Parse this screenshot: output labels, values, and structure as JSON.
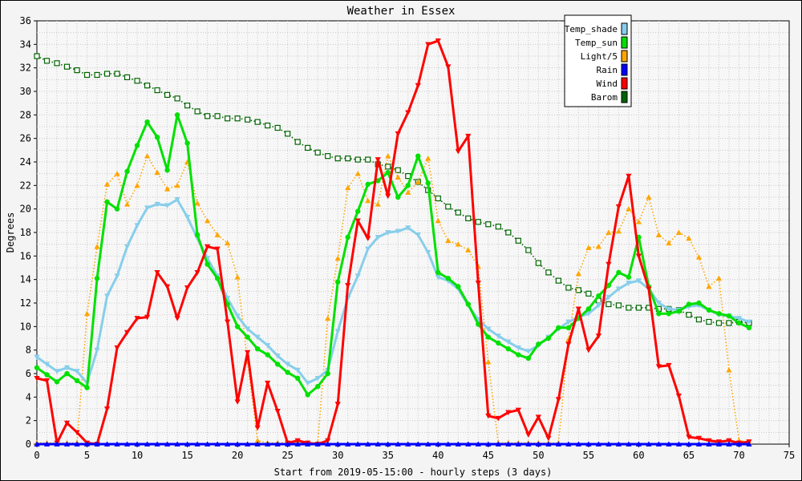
{
  "chart_data": {
    "type": "line",
    "title": "Weather in Essex",
    "xlabel": "Start from 2019-05-15:00 - hourly steps (3 days)",
    "ylabel": "Degrees",
    "xlim": [
      0,
      75
    ],
    "ylim": [
      0,
      36
    ],
    "xticks": [
      0,
      5,
      10,
      15,
      20,
      25,
      30,
      35,
      40,
      45,
      50,
      55,
      60,
      65,
      70,
      75
    ],
    "yticks": [
      0,
      2,
      4,
      6,
      8,
      10,
      12,
      14,
      16,
      18,
      20,
      22,
      24,
      26,
      28,
      30,
      32,
      34,
      36
    ],
    "grid": true,
    "legend_position": "top-right",
    "series": [
      {
        "name": "Temp_shade",
        "color": "#87ceeb",
        "marker": "triangle-down",
        "line": "solid",
        "values": [
          7.4,
          6.8,
          6.2,
          6.5,
          6.2,
          5.2,
          8.0,
          12.6,
          14.3,
          16.8,
          18.6,
          20.1,
          20.4,
          20.3,
          20.8,
          19.3,
          17.5,
          15.8,
          14.3,
          12.4,
          10.9,
          9.8,
          9.1,
          8.4,
          7.5,
          6.8,
          6.3,
          5.2,
          5.6,
          6.3,
          9.6,
          12.4,
          14.3,
          16.6,
          17.6,
          18.0,
          18.1,
          18.4,
          17.8,
          16.3,
          14.2,
          13.9,
          13.2,
          11.8,
          10.6,
          9.8,
          9.2,
          8.7,
          8.2,
          7.9,
          8.4,
          9.1,
          9.8,
          10.4,
          10.8,
          11.1,
          11.8,
          12.5,
          13.2,
          13.7,
          13.9,
          13.2,
          12.0,
          11.5,
          11.4,
          11.7,
          11.8,
          11.4,
          11.0,
          10.9,
          10.7,
          10.4
        ]
      },
      {
        "name": "Temp_sun",
        "color": "#00e000",
        "marker": "circle",
        "line": "solid",
        "values": [
          6.5,
          5.9,
          5.3,
          6.0,
          5.4,
          4.8,
          14.1,
          20.6,
          20.0,
          23.2,
          25.4,
          27.4,
          26.1,
          23.3,
          28.0,
          25.6,
          17.8,
          15.3,
          14.1,
          11.9,
          10.0,
          9.1,
          8.1,
          7.6,
          6.8,
          6.1,
          5.6,
          4.2,
          4.9,
          6.0,
          13.8,
          17.6,
          19.8,
          22.1,
          22.4,
          23.1,
          21.0,
          22.0,
          24.5,
          22.2,
          14.6,
          14.1,
          13.4,
          11.9,
          10.2,
          9.1,
          8.6,
          8.1,
          7.6,
          7.3,
          8.5,
          9.0,
          9.9,
          9.9,
          10.7,
          11.5,
          12.6,
          13.5,
          14.6,
          14.2,
          17.6,
          13.4,
          11.1,
          11.1,
          11.3,
          11.9,
          12.0,
          11.4,
          11.1,
          10.9,
          10.3,
          9.9
        ]
      },
      {
        "name": "Light/5",
        "color": "#ffa500",
        "marker": "triangle-up",
        "line": "dotted",
        "values": [
          0.1,
          0.1,
          0.1,
          0.1,
          0.1,
          11.1,
          16.8,
          22.1,
          23.0,
          20.4,
          22.0,
          24.5,
          23.1,
          21.7,
          22.0,
          24.0,
          20.5,
          19.0,
          17.8,
          17.1,
          14.2,
          7.0,
          0.3,
          0.1,
          0.1,
          0.1,
          0.1,
          0.1,
          0.1,
          10.7,
          15.8,
          21.8,
          23.0,
          20.7,
          20.4,
          24.5,
          22.7,
          21.4,
          22.3,
          24.3,
          19.0,
          17.3,
          17.0,
          16.5,
          15.1,
          7.0,
          0.1,
          0.1,
          0.1,
          0.1,
          0.1,
          0.1,
          0.1,
          8.9,
          14.5,
          16.7,
          16.8,
          18.0,
          18.1,
          20.0,
          18.9,
          21.0,
          17.8,
          17.1,
          18.0,
          17.5,
          15.9,
          13.4,
          14.1,
          6.3,
          0.3,
          0.2
        ]
      },
      {
        "name": "Rain",
        "color": "#0000ff",
        "marker": "triangle-up",
        "line": "solid",
        "values": [
          0,
          0,
          0,
          0,
          0,
          0,
          0,
          0,
          0,
          0,
          0,
          0,
          0,
          0,
          0,
          0,
          0,
          0,
          0,
          0,
          0,
          0,
          0,
          0,
          0,
          0,
          0,
          0,
          0,
          0,
          0,
          0,
          0,
          0,
          0,
          0,
          0,
          0,
          0,
          0,
          0,
          0,
          0,
          0,
          0,
          0,
          0,
          0,
          0,
          0,
          0,
          0,
          0,
          0,
          0,
          0,
          0,
          0,
          0,
          0,
          0,
          0,
          0,
          0,
          0,
          0,
          0,
          0,
          0,
          0,
          0,
          0
        ]
      },
      {
        "name": "Wind",
        "color": "#ff0000",
        "marker": "triangle-down",
        "line": "solid",
        "values": [
          5.6,
          5.4,
          0.1,
          1.8,
          1.0,
          0.1,
          0.0,
          3.0,
          8.2,
          9.5,
          10.7,
          10.8,
          14.6,
          13.4,
          10.7,
          13.3,
          14.6,
          16.8,
          16.6,
          10.4,
          3.6,
          7.8,
          1.4,
          5.2,
          2.8,
          0.1,
          0.3,
          0.1,
          0.0,
          0.3,
          3.4,
          13.5,
          19.0,
          17.5,
          24.2,
          21.1,
          26.4,
          28.2,
          30.5,
          34.0,
          34.3,
          32.1,
          24.9,
          26.2,
          13.7,
          2.4,
          2.2,
          2.7,
          2.9,
          0.8,
          2.3,
          0.5,
          3.8,
          8.5,
          11.5,
          8.0,
          9.2,
          15.3,
          20.2,
          22.8,
          16.0,
          13.2,
          6.6,
          6.7,
          4.1,
          0.6,
          0.5,
          0.3,
          0.2,
          0.3,
          0.1,
          0.2
        ]
      },
      {
        "name": "Barom",
        "color": "#006400",
        "marker": "square",
        "line": "dotted",
        "values": [
          33.0,
          32.6,
          32.4,
          32.1,
          31.8,
          31.4,
          31.4,
          31.5,
          31.5,
          31.2,
          30.9,
          30.5,
          30.1,
          29.7,
          29.4,
          28.8,
          28.3,
          27.9,
          27.9,
          27.7,
          27.7,
          27.6,
          27.4,
          27.1,
          26.9,
          26.4,
          25.7,
          25.2,
          24.8,
          24.5,
          24.3,
          24.3,
          24.2,
          24.2,
          23.8,
          23.6,
          23.3,
          22.8,
          22.3,
          21.6,
          20.9,
          20.2,
          19.7,
          19.2,
          18.9,
          18.7,
          18.5,
          18.0,
          17.3,
          16.5,
          15.4,
          14.6,
          13.9,
          13.3,
          13.1,
          12.8,
          12.2,
          11.9,
          11.8,
          11.6,
          11.6,
          11.6,
          11.5,
          11.5,
          11.4,
          11.0,
          10.6,
          10.4,
          10.3,
          10.3,
          10.4,
          10.3
        ]
      }
    ]
  }
}
